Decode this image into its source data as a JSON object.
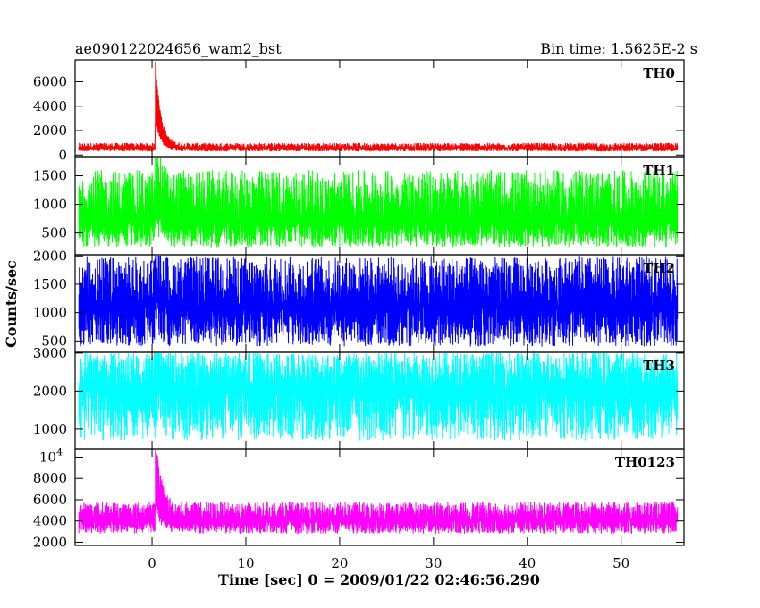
{
  "chart_data": {
    "type": "line",
    "title": "ae090122024656_wam2_bst",
    "subtitle": "Bin time: 1.5625E-2 s",
    "xlabel": "Time [sec] 0 = 2009/01/22 02:46:56.290",
    "ylabel": "Counts/sec",
    "xlim": [
      -8.2,
      56.7
    ],
    "data_xlim": [
      -7.8,
      56
    ],
    "x_ticks": [
      0,
      10,
      20,
      30,
      40,
      50
    ],
    "x_tick_labels": [
      "0",
      "10",
      "20",
      "30",
      "40",
      "50"
    ],
    "grid": false,
    "legend": "none",
    "series": [
      {
        "name": "TH0",
        "color": "#ff0000",
        "ylim": [
          -200,
          7800
        ],
        "y_ticks": [
          0,
          2000,
          4000,
          6000
        ],
        "y_tick_labels": [
          "0",
          "2000",
          "4000",
          "6000"
        ],
        "baseline": 550,
        "noise_low": 250,
        "noise_high": 450,
        "burst_time": 0.35,
        "burst_peak": 7700,
        "burst_decay": 0.55
      },
      {
        "name": "TH1",
        "color": "#00ff00",
        "ylim": [
          120,
          1820
        ],
        "y_ticks": [
          500,
          1000,
          1500
        ],
        "y_tick_labels": [
          "500",
          "1000",
          "1500"
        ],
        "baseline": 700,
        "noise_low": 450,
        "noise_high": 900,
        "burst_time": 0.35,
        "burst_peak": 1820,
        "burst_decay": 0.4
      },
      {
        "name": "TH2",
        "color": "#0000ff",
        "ylim": [
          300,
          2020
        ],
        "y_ticks": [
          500,
          1000,
          1500,
          2000
        ],
        "y_tick_labels": [
          "500",
          "1000",
          "1500",
          "2000"
        ],
        "baseline": 1100,
        "noise_low": 700,
        "noise_high": 900,
        "burst_time": 0.35,
        "burst_peak": 2000,
        "burst_decay": 0.3
      },
      {
        "name": "TH3",
        "color": "#00ffff",
        "ylim": [
          480,
          3020
        ],
        "y_ticks": [
          1000,
          2000,
          3000
        ],
        "y_tick_labels": [
          "1000",
          "2000",
          "3000"
        ],
        "baseline": 2050,
        "noise_low": 1350,
        "noise_high": 1000,
        "burst_time": 0.35,
        "burst_peak": 3000,
        "burst_decay": 0.3
      },
      {
        "name": "TH0123",
        "color": "#ff00ff",
        "ylim": [
          1700,
          10800
        ],
        "y_ticks": [
          2000,
          4000,
          6000,
          8000,
          10000
        ],
        "y_tick_labels": [
          "2000",
          "4000",
          "6000",
          "8000",
          "10^4"
        ],
        "baseline": 4100,
        "noise_low": 1300,
        "noise_high": 1700,
        "burst_time": 0.35,
        "burst_peak": 10800,
        "burst_decay": 0.6
      }
    ]
  }
}
